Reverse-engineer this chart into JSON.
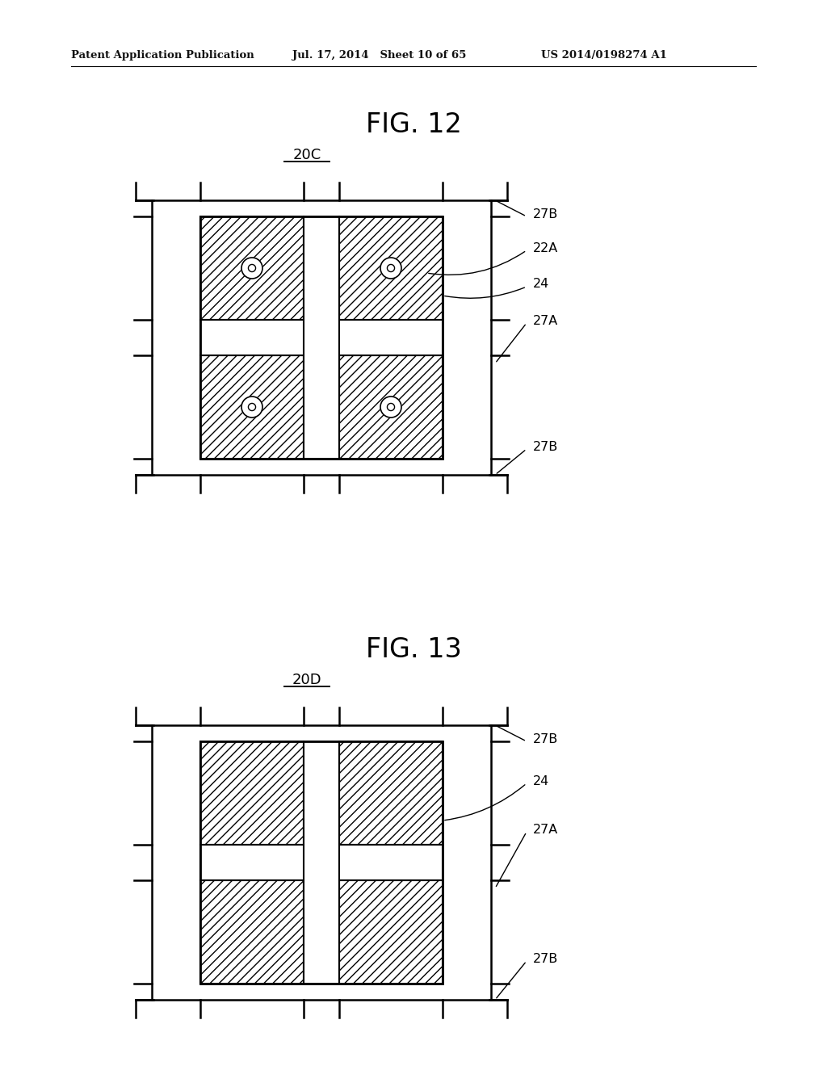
{
  "header_left": "Patent Application Publication",
  "header_mid": "Jul. 17, 2014   Sheet 10 of 65",
  "header_right": "US 2014/0198274 A1",
  "fig12_title": "FIG. 12",
  "fig12_label": "20C",
  "fig13_title": "FIG. 13",
  "fig13_label": "20D",
  "label_27B_top": "27B",
  "label_22A": "22A",
  "label_24_fig12": "24",
  "label_27A_fig12": "27A",
  "label_27B_bot": "27B",
  "label_24_fig13": "24",
  "label_27A_fig13": "27A",
  "label_27B_top13": "27B",
  "label_27B_bot13": "27B",
  "bg_color": "#ffffff",
  "line_color": "#000000"
}
